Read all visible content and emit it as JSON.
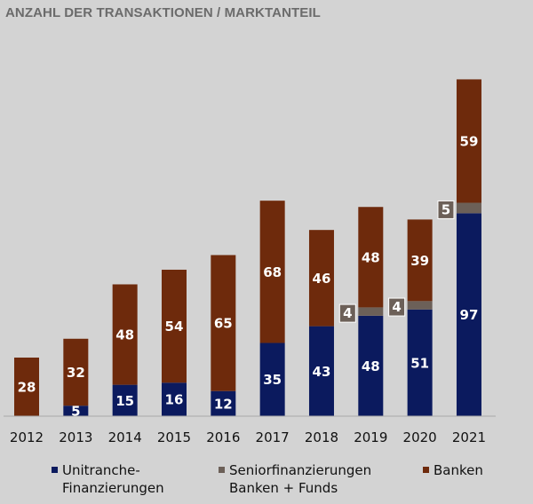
{
  "chart_data": {
    "type": "bar",
    "stacked": true,
    "title": "ANZAHL DER TRANSAKTIONEN / MARKTANTEIL",
    "categories": [
      "2012",
      "2013",
      "2014",
      "2015",
      "2016",
      "2017",
      "2018",
      "2019",
      "2020",
      "2021"
    ],
    "series": [
      {
        "name": "Unitranche-\nFinanzierungen",
        "name_lines": [
          "Unitranche-",
          "Finanzierungen"
        ],
        "color": "#0b1a5e",
        "values": [
          0,
          5,
          15,
          16,
          12,
          35,
          43,
          48,
          51,
          97
        ],
        "labels": [
          "",
          "5",
          "15",
          "16",
          "12",
          "35",
          "43",
          "48",
          "51",
          "97"
        ]
      },
      {
        "name": "Seniorfinanzierungen\nBanken + Funds",
        "name_lines": [
          "Seniorfinanzierungen",
          "Banken + Funds"
        ],
        "color": "#6c6058",
        "values": [
          0,
          0,
          0,
          0,
          0,
          0,
          0,
          4,
          4,
          5
        ],
        "labels": [
          "",
          "",
          "",
          "",
          "",
          "",
          "",
          "4",
          "4",
          "5"
        ]
      },
      {
        "name": "Banken",
        "name_lines": [
          "Banken"
        ],
        "color": "#6e2a0c",
        "values": [
          28,
          32,
          48,
          54,
          65,
          68,
          46,
          48,
          39,
          59
        ],
        "labels": [
          "28",
          "32",
          "48",
          "54",
          "65",
          "68",
          "46",
          "48",
          "39",
          "59"
        ]
      }
    ],
    "ylim": [
      0,
      165
    ],
    "grid": false,
    "legend_position": "bottom"
  }
}
